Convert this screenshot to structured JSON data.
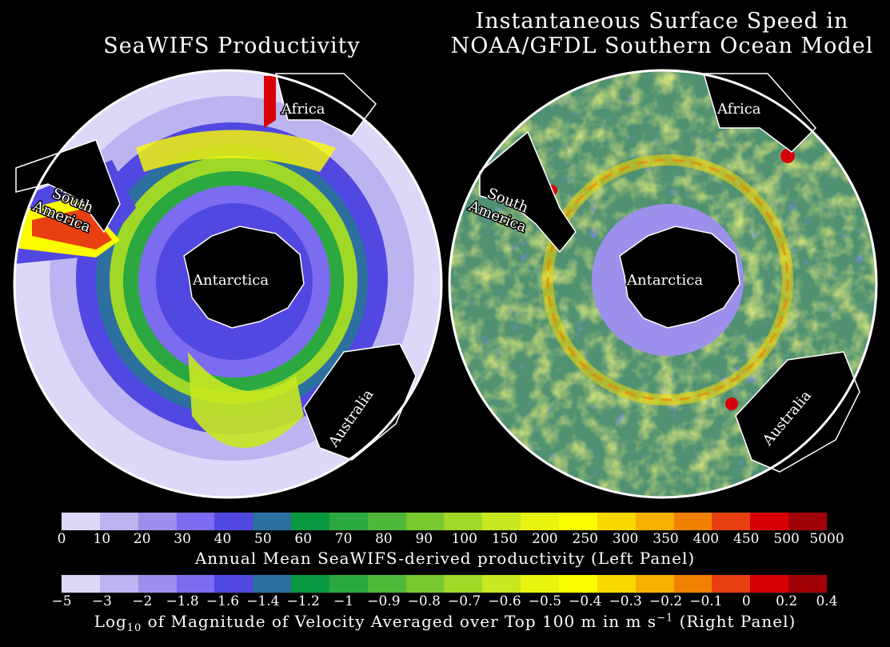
{
  "titles": {
    "left": "SeaWIFS Productivity",
    "right_line1": "Instantaneous Surface Speed in",
    "right_line2": "NOAA/GFDL Southern Ocean Model"
  },
  "left_map": {
    "labels": {
      "africa": "Africa",
      "south": "South",
      "america": "America",
      "antarctica": "Antarctica",
      "australia": "Australia"
    }
  },
  "right_map": {
    "labels": {
      "africa": "Africa",
      "south": "South",
      "america": "America",
      "antarctica": "Antarctica",
      "australia": "Australia"
    }
  },
  "colors": [
    "#dcd8f8",
    "#bcb4f0",
    "#9c90ec",
    "#7c6cf0",
    "#5048e0",
    "#2c70a0",
    "#089840",
    "#2ca840",
    "#50b838",
    "#78c830",
    "#a0d828",
    "#c8e820",
    "#e8f410",
    "#fcfc00",
    "#f8d800",
    "#f8b000",
    "#f08000",
    "#e84010",
    "#d80008",
    "#a00008"
  ],
  "colorbar_productivity": {
    "ticks": [
      "0",
      "10",
      "20",
      "30",
      "40",
      "50",
      "60",
      "70",
      "80",
      "90",
      "100",
      "150",
      "200",
      "250",
      "300",
      "350",
      "400",
      "450",
      "500",
      "5000"
    ],
    "caption": "Annual Mean SeaWIFS-derived productivity (Left Panel)"
  },
  "colorbar_velocity": {
    "ticks": [
      "−5",
      "−3",
      "−2",
      "−1.8",
      "−1.6",
      "−1.4",
      "−1.2",
      "−1",
      "−0.9",
      "−0.8",
      "−0.7",
      "−0.6",
      "−0.5",
      "−0.4",
      "−0.3",
      "−0.2",
      "−0.1",
      "0",
      "0.2",
      "0.4"
    ],
    "caption_log": "Log",
    "caption_base": "10",
    "caption_mid": " of Magnitude of Velocity Averaged over Top 100 m in m s",
    "caption_exp": "−1",
    "caption_end": " (Right Panel)"
  }
}
